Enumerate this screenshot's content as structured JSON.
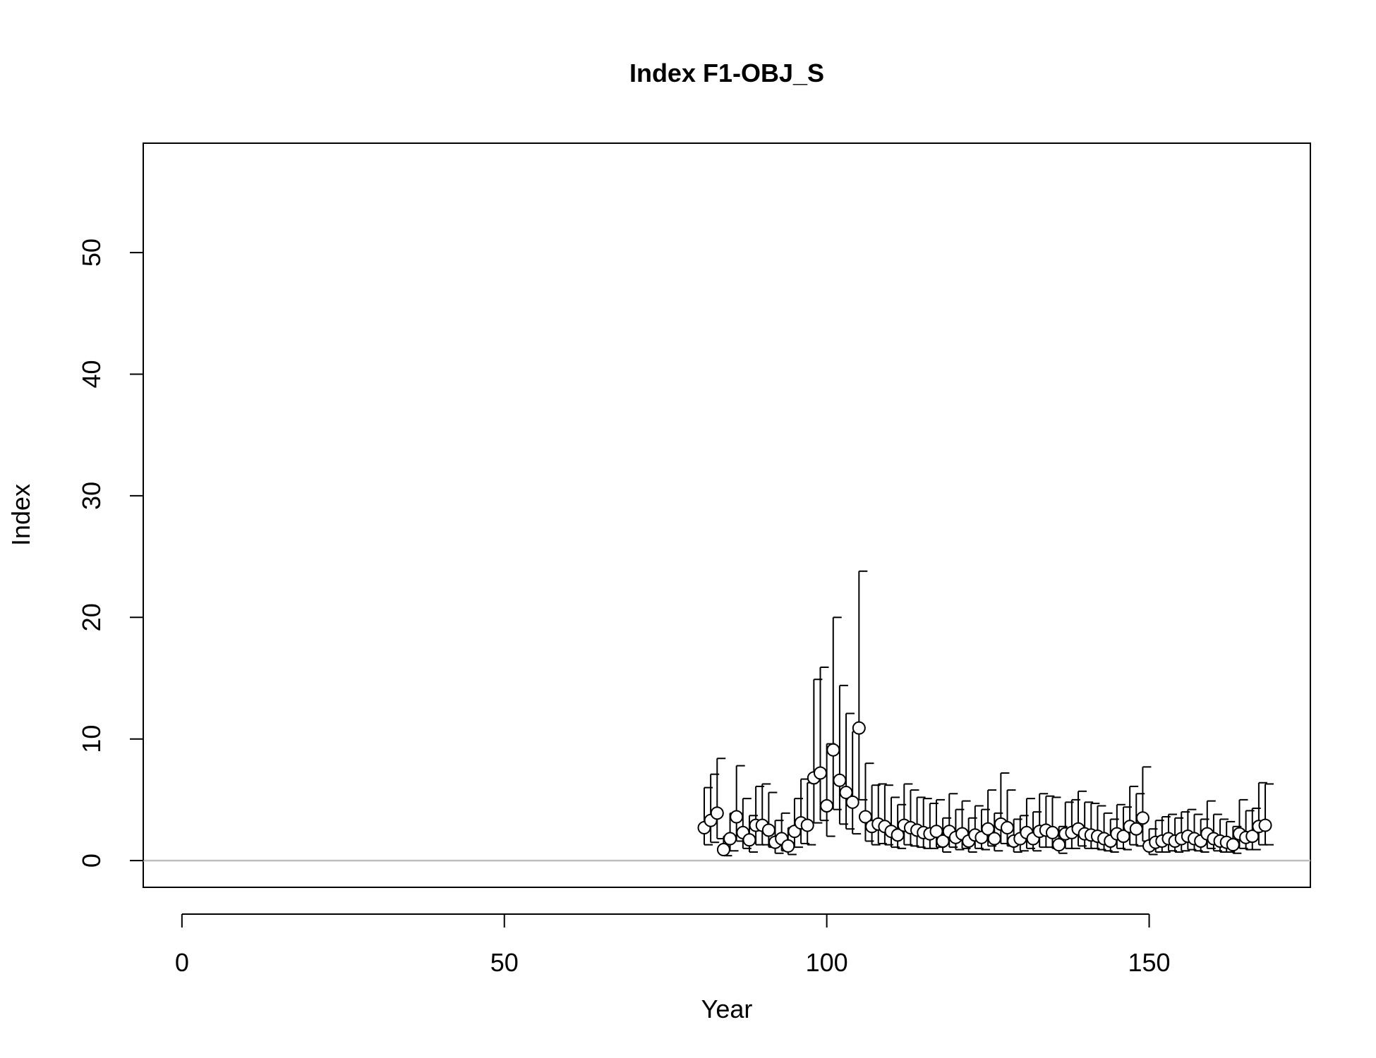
{
  "chart_data": {
    "type": "scatter",
    "title": "Index F1-OBJ_S",
    "xlabel": "Year",
    "ylabel": "Index",
    "xlim": [
      -6,
      175
    ],
    "ylim": [
      -2.2,
      59
    ],
    "x_ticks": [
      0,
      50,
      100,
      150
    ],
    "y_ticks": [
      0,
      10,
      20,
      30,
      40,
      50
    ],
    "reference_line": {
      "y": 0,
      "color": "#bebebe"
    },
    "point_fill": "#ffffff",
    "point_stroke": "#000000",
    "grid": false,
    "legend": "none",
    "series": [
      {
        "x": [
          81,
          82,
          83,
          84,
          85,
          86,
          87,
          88,
          89,
          90,
          91,
          92,
          93,
          94,
          95,
          96,
          97,
          98,
          99,
          100,
          101,
          102,
          103,
          104,
          105,
          106,
          107,
          108,
          109,
          110,
          111,
          112,
          113,
          114,
          115,
          116,
          117,
          118,
          119,
          120,
          121,
          122,
          123,
          124,
          125,
          126,
          127,
          128,
          129,
          130,
          131,
          132,
          133,
          134,
          135,
          136,
          137,
          138,
          139,
          140,
          141,
          142,
          143,
          144,
          145,
          146,
          147,
          148,
          149,
          150,
          151,
          152,
          153,
          154,
          155,
          156,
          157,
          158,
          159,
          160,
          161,
          162,
          163,
          164,
          165,
          166,
          167,
          168
        ],
        "y": [
          2.7,
          3.3,
          3.9,
          0.9,
          1.8,
          3.6,
          2.3,
          1.7,
          2.9,
          2.9,
          2.5,
          1.5,
          1.8,
          1.2,
          2.4,
          3.1,
          2.9,
          6.8,
          7.2,
          4.5,
          9.1,
          6.6,
          5.6,
          4.8,
          10.9,
          3.6,
          2.8,
          3.0,
          2.8,
          2.4,
          2.1,
          2.9,
          2.7,
          2.5,
          2.3,
          2.2,
          2.4,
          1.6,
          2.4,
          1.9,
          2.2,
          1.6,
          2.1,
          1.9,
          2.6,
          1.8,
          3.0,
          2.7,
          1.6,
          1.8,
          2.3,
          1.8,
          2.4,
          2.5,
          2.3,
          1.3,
          2.2,
          2.3,
          2.6,
          2.2,
          2.1,
          2.0,
          1.8,
          1.6,
          2.2,
          2.0,
          2.8,
          2.6,
          3.5,
          1.2,
          1.5,
          1.6,
          1.8,
          1.6,
          1.8,
          2.0,
          1.8,
          1.6,
          2.2,
          1.8,
          1.6,
          1.5,
          1.3,
          2.2,
          1.9,
          2.0,
          2.8,
          2.9
        ],
        "lower": [
          1.3,
          1.5,
          1.8,
          0.4,
          0.8,
          1.6,
          1.0,
          0.7,
          1.3,
          1.3,
          1.1,
          0.6,
          0.8,
          0.5,
          1.1,
          1.4,
          1.3,
          3.1,
          3.3,
          2.0,
          4.2,
          3.0,
          2.6,
          2.2,
          5.0,
          1.6,
          1.3,
          1.4,
          1.3,
          1.1,
          1.0,
          1.3,
          1.2,
          1.1,
          1.0,
          1.0,
          1.1,
          0.7,
          1.1,
          0.9,
          1.0,
          0.7,
          1.0,
          0.9,
          1.2,
          0.8,
          1.4,
          1.2,
          0.7,
          0.8,
          1.0,
          0.8,
          1.1,
          1.1,
          1.0,
          0.6,
          1.0,
          1.0,
          1.2,
          1.0,
          1.0,
          0.9,
          0.8,
          0.7,
          1.0,
          0.9,
          1.3,
          1.2,
          1.6,
          0.5,
          0.7,
          0.7,
          0.8,
          0.7,
          0.8,
          0.9,
          0.8,
          0.7,
          1.0,
          0.8,
          0.7,
          0.7,
          0.6,
          1.0,
          0.9,
          0.9,
          1.3,
          1.3
        ],
        "upper": [
          6.0,
          7.1,
          8.4,
          2.0,
          3.9,
          7.8,
          5.1,
          3.7,
          6.1,
          6.3,
          5.6,
          3.3,
          3.9,
          2.7,
          5.1,
          6.7,
          6.4,
          14.9,
          15.9,
          9.6,
          20.0,
          14.4,
          12.1,
          10.6,
          23.8,
          8.0,
          6.2,
          6.3,
          6.2,
          5.2,
          4.6,
          6.3,
          5.8,
          5.2,
          5.1,
          4.7,
          5.0,
          3.5,
          5.5,
          4.2,
          4.9,
          3.5,
          4.5,
          4.2,
          5.8,
          3.9,
          7.2,
          5.8,
          3.4,
          3.7,
          5.1,
          4.0,
          5.5,
          5.3,
          5.2,
          2.8,
          4.8,
          5.0,
          5.7,
          4.8,
          4.7,
          4.5,
          3.9,
          3.4,
          4.6,
          4.4,
          6.1,
          5.5,
          7.7,
          2.6,
          3.3,
          3.6,
          3.8,
          3.5,
          4.0,
          4.2,
          3.8,
          3.4,
          4.9,
          3.8,
          3.4,
          3.2,
          2.8,
          5.0,
          4.1,
          4.3,
          6.4,
          6.3
        ]
      }
    ]
  }
}
